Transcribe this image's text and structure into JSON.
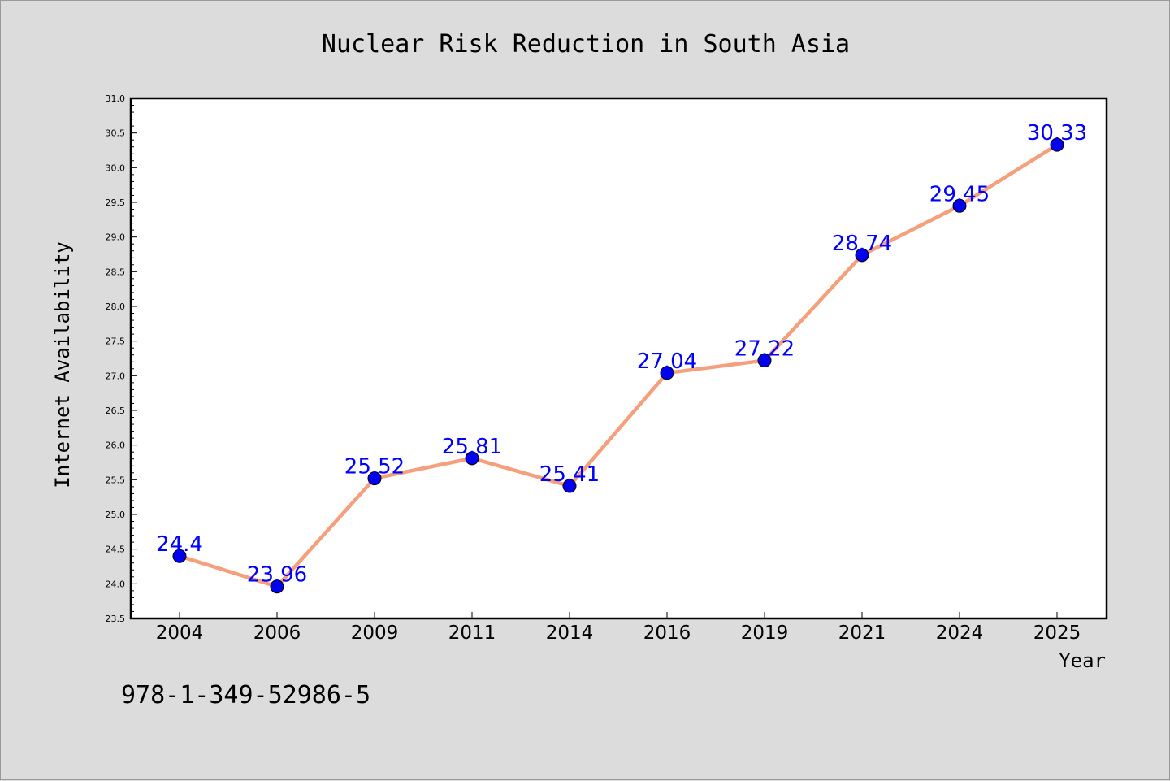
{
  "chart_data": {
    "type": "line",
    "title": "Nuclear Risk Reduction in South Asia",
    "xlabel": "Year",
    "ylabel": "Internet Availability",
    "categories": [
      "2004",
      "2006",
      "2009",
      "2011",
      "2014",
      "2016",
      "2019",
      "2021",
      "2024",
      "2025"
    ],
    "series": [
      {
        "values": [
          24.4,
          23.96,
          25.52,
          25.81,
          25.41,
          27.04,
          27.22,
          28.74,
          29.45,
          30.33
        ],
        "data_labels": [
          "24.4",
          "23.96",
          "25.52",
          "25.81",
          "25.41",
          "27.04",
          "27.22",
          "28.74",
          "29.45",
          "30.33"
        ]
      }
    ],
    "ylim": [
      23.5,
      31.0
    ],
    "yticks": [
      "23.5",
      "24.0",
      "24.5",
      "25.0",
      "25.5",
      "26.0",
      "26.5",
      "27.0",
      "27.5",
      "28.0",
      "28.5",
      "29.0",
      "29.5",
      "30.0",
      "30.5",
      "31.0"
    ],
    "grid": false,
    "legend": "none"
  },
  "footnote": "978-1-349-52986-5",
  "colors": {
    "line": "#f4a07c",
    "marker": "#0000ee",
    "data_label": "#0000ff",
    "background": "#dcdcdc",
    "plot_background": "#ffffff"
  }
}
